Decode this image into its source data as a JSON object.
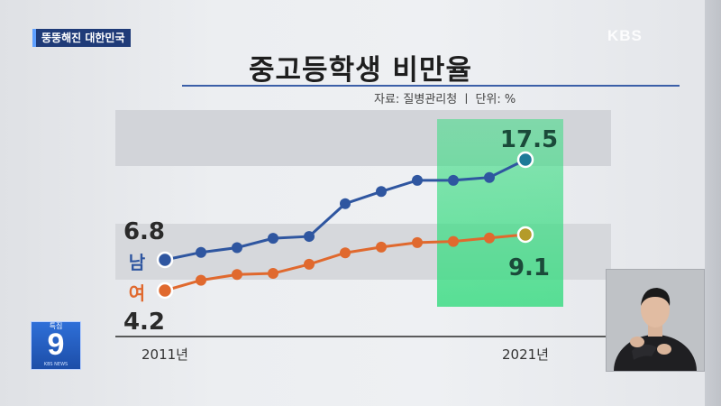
{
  "header": {
    "topic_tag": "뚱뚱해진 대한민국",
    "logo": "KBS",
    "title": "중고등학생 비만율",
    "source": "자료: 질병관리청 ㅣ 단위: %"
  },
  "badge": {
    "top": "특집",
    "number": "9",
    "sub": "KBS NEWS"
  },
  "colors": {
    "male": "#2f56a0",
    "female": "#e0692e",
    "highlight": "#3ddc84",
    "male_last": "#1e7a98",
    "female_last": "#b49b2a"
  },
  "chart_data": {
    "type": "line",
    "x_labels": [
      "2011년",
      "2021년"
    ],
    "x": [
      2011,
      2012,
      2013,
      2014,
      2015,
      2016,
      2017,
      2018,
      2019,
      2020,
      2021
    ],
    "series": [
      {
        "name": "남",
        "values": [
          6.8,
          7.6,
          8.1,
          9.1,
          9.3,
          12.8,
          14.1,
          15.3,
          15.3,
          15.6,
          17.5
        ]
      },
      {
        "name": "여",
        "values": [
          4.2,
          5.1,
          5.6,
          5.7,
          6.5,
          7.5,
          8.0,
          8.4,
          8.5,
          8.8,
          9.1
        ]
      }
    ],
    "labels": {
      "male_first": "6.8",
      "male_last": "17.5",
      "female_first": "4.2",
      "female_last": "9.1"
    },
    "highlight_range": [
      2019,
      2021
    ],
    "grid": false,
    "legend": "inline-left"
  }
}
